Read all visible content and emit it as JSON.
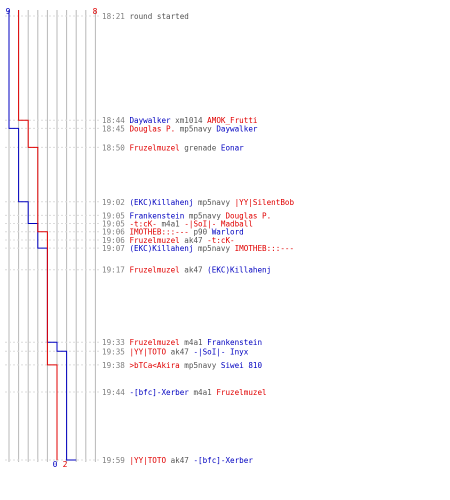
{
  "colors": {
    "blue_team": "#0000c0",
    "red_team": "#e00000",
    "weapon": "#555555",
    "time": "#808080"
  },
  "chart_data": {
    "type": "line",
    "title": "",
    "xlabel": "",
    "ylabel": "",
    "blue_start": 9,
    "red_start": 8,
    "blue_end": 0,
    "red_end": 2,
    "series": [
      {
        "name": "",
        "values": [
          9,
          9,
          9,
          8,
          8,
          7,
          7,
          6,
          6,
          6,
          5,
          5,
          4,
          3,
          3,
          3,
          2,
          2,
          2,
          1,
          1,
          1,
          0
        ]
      },
      {
        "name": "",
        "values": [
          8,
          8,
          7,
          7,
          6,
          6,
          6,
          6,
          5,
          5,
          5,
          5,
          5,
          5,
          4,
          4,
          4,
          3,
          2,
          2,
          2,
          2,
          2
        ]
      }
    ],
    "events": [
      {
        "time": "18:21",
        "parts": [
          {
            "t": "round started",
            "c": "gray"
          }
        ]
      },
      {
        "time": "18:44",
        "parts": [
          {
            "t": "Daywalker",
            "c": "blue"
          },
          {
            "t": " xm1014 ",
            "c": "gray"
          },
          {
            "t": "AMOK_Frutti",
            "c": "red"
          }
        ]
      },
      {
        "time": "18:45",
        "parts": [
          {
            "t": "Douglas P.",
            "c": "red"
          },
          {
            "t": " mp5navy ",
            "c": "gray"
          },
          {
            "t": "Daywalker",
            "c": "blue"
          }
        ]
      },
      {
        "time": "18:50",
        "parts": [
          {
            "t": "Fruzelmuzel",
            "c": "red"
          },
          {
            "t": " grenade ",
            "c": "gray"
          },
          {
            "t": "Eonar",
            "c": "blue"
          }
        ]
      },
      {
        "time": "19:02",
        "parts": [
          {
            "t": "(EKC)Killahenj",
            "c": "blue"
          },
          {
            "t": " mp5navy ",
            "c": "gray"
          },
          {
            "t": "|YY|SilentBob",
            "c": "red"
          }
        ]
      },
      {
        "time": "19:05",
        "parts": [
          {
            "t": "Frankenstein",
            "c": "blue"
          },
          {
            "t": " mp5navy ",
            "c": "gray"
          },
          {
            "t": "Douglas P.",
            "c": "red"
          }
        ]
      },
      {
        "time": "19:05",
        "parts": [
          {
            "t": "-t:cK-",
            "c": "red"
          },
          {
            "t": " m4a1 ",
            "c": "gray"
          },
          {
            "t": "-|SoI|- Madball",
            "c": "red"
          }
        ]
      },
      {
        "time": "19:06",
        "parts": [
          {
            "t": "IMOTHEB:::---",
            "c": "red"
          },
          {
            "t": " p90 ",
            "c": "gray"
          },
          {
            "t": "Warlord",
            "c": "blue"
          }
        ]
      },
      {
        "time": "19:06",
        "parts": [
          {
            "t": "Fruzelmuzel",
            "c": "red"
          },
          {
            "t": " ak47 ",
            "c": "gray"
          },
          {
            "t": "-t:cK-",
            "c": "red"
          }
        ]
      },
      {
        "time": "19:07",
        "parts": [
          {
            "t": "(EKC)Killahenj",
            "c": "blue"
          },
          {
            "t": " mp5navy ",
            "c": "gray"
          },
          {
            "t": "IMOTHEB:::---",
            "c": "red"
          }
        ]
      },
      {
        "time": "19:17",
        "parts": [
          {
            "t": "Fruzelmuzel",
            "c": "red"
          },
          {
            "t": " ak47 ",
            "c": "gray"
          },
          {
            "t": "(EKC)Killahenj",
            "c": "blue"
          }
        ]
      },
      {
        "time": "19:33",
        "parts": [
          {
            "t": "Fruzelmuzel",
            "c": "red"
          },
          {
            "t": " m4a1 ",
            "c": "gray"
          },
          {
            "t": "Frankenstein",
            "c": "blue"
          }
        ]
      },
      {
        "time": "19:35",
        "parts": [
          {
            "t": "|YY|TOTO",
            "c": "red"
          },
          {
            "t": " ak47 ",
            "c": "gray"
          },
          {
            "t": "-|SoI|- Inyx",
            "c": "blue"
          }
        ]
      },
      {
        "time": "19:38",
        "parts": [
          {
            "t": ">bTCa<Akira",
            "c": "red"
          },
          {
            "t": " mp5navy ",
            "c": "gray"
          },
          {
            "t": "Siwei 810",
            "c": "blue"
          }
        ]
      },
      {
        "time": "19:44",
        "parts": [
          {
            "t": "-[bfc]-Xerber",
            "c": "blue"
          },
          {
            "t": " m4a1 ",
            "c": "gray"
          },
          {
            "t": "Fruzelmuzel",
            "c": "red"
          }
        ]
      },
      {
        "time": "19:59",
        "parts": [
          {
            "t": "|YY|TOTO",
            "c": "red"
          },
          {
            "t": " ak47 ",
            "c": "gray"
          },
          {
            "t": "-[bfc]-Xerber",
            "c": "blue"
          }
        ]
      }
    ]
  }
}
